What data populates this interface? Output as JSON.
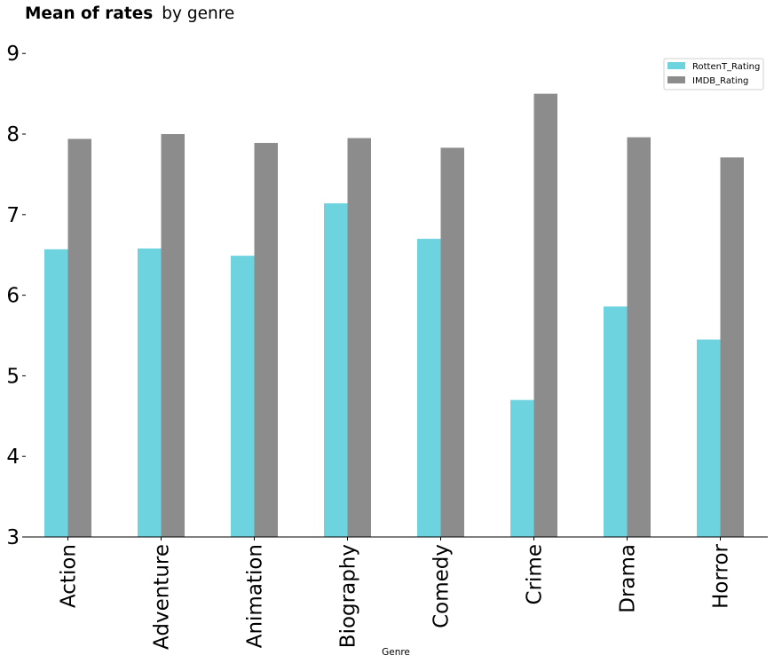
{
  "chart_data": {
    "type": "bar",
    "title_bold": "Mean of rates",
    "title_rest": "by genre",
    "xlabel": "Genre",
    "ylabel": "",
    "ylim": [
      3,
      9.3
    ],
    "yticks": [
      "3",
      "4",
      "5",
      "6",
      "7",
      "8",
      "9"
    ],
    "categories": [
      "Action",
      "Adventure",
      "Animation",
      "Biography",
      "Comedy",
      "Crime",
      "Drama",
      "Horror"
    ],
    "series": [
      {
        "name": "RottenT_Rating",
        "color": "#6dd3df",
        "values": [
          6.57,
          6.58,
          6.49,
          7.14,
          6.7,
          4.7,
          5.86,
          5.45
        ]
      },
      {
        "name": "IMDB_Rating",
        "color": "#8c8c8c",
        "values": [
          7.94,
          8.0,
          7.89,
          7.95,
          7.83,
          8.5,
          7.96,
          7.71
        ]
      }
    ],
    "legend_position": "top-right",
    "grid": false
  }
}
